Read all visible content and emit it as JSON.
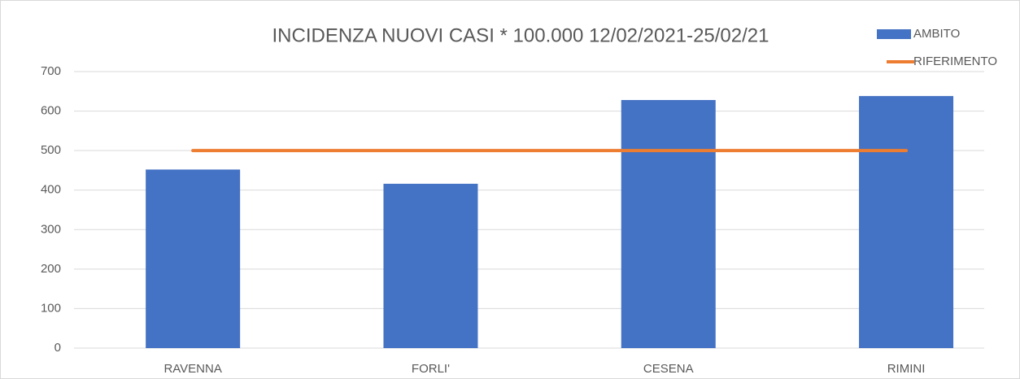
{
  "chart_data": {
    "type": "bar",
    "title": "INCIDENZA NUOVI CASI * 100.000  12/02/2021-25/02/21",
    "categories": [
      "RAVENNA",
      "FORLI'",
      "CESENA",
      "RIMINI"
    ],
    "series": [
      {
        "name": "AMBITO",
        "type": "bar",
        "color": "#4472c4",
        "values": [
          452,
          416,
          628,
          638
        ]
      },
      {
        "name": "RIFERIMENTO",
        "type": "line",
        "color": "#ed7d31",
        "values": [
          500,
          500,
          500,
          500
        ]
      }
    ],
    "ylim": [
      0,
      700
    ],
    "yticks": [
      0,
      100,
      200,
      300,
      400,
      500,
      600,
      700
    ],
    "grid": true,
    "legend": "top-right"
  }
}
